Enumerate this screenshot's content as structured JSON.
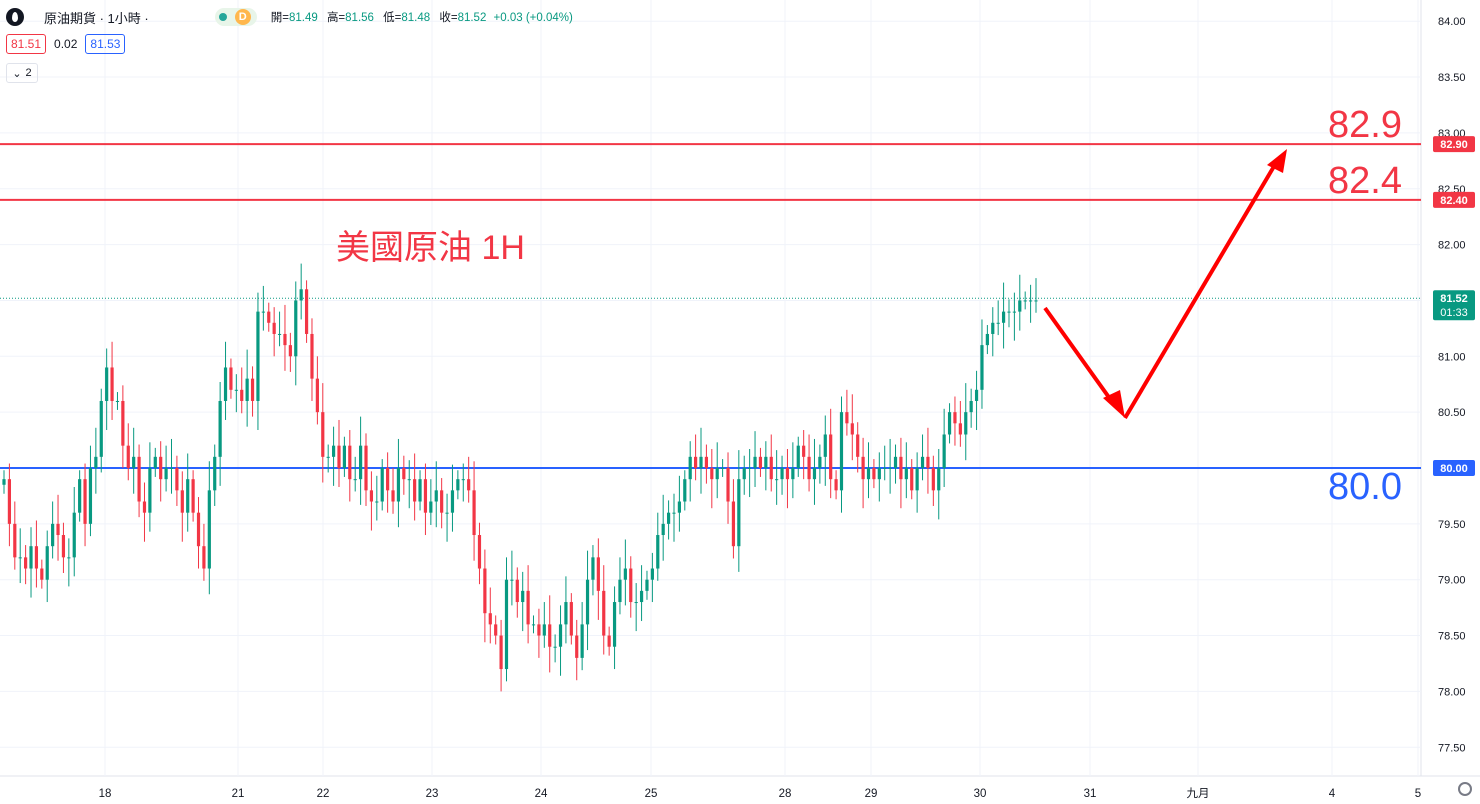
{
  "header": {
    "symbol_title": "原油期貨 · 1小時 ·",
    "market_badge": "D",
    "open_label": "開=",
    "open": "81.49",
    "high_label": "高=",
    "high": "81.56",
    "low_label": "低=",
    "low": "81.48",
    "close_label": "收=",
    "close": "81.52",
    "change": "+0.03 (+0.04%)"
  },
  "quote": {
    "bid": "81.51",
    "spread": "0.02",
    "ask": "81.53"
  },
  "indicators_toggle": {
    "count": "2"
  },
  "annotation": "美國原油 1H",
  "levels": [
    {
      "value": 82.9,
      "label": "82.9",
      "tag": "82.90",
      "color": "#f23645"
    },
    {
      "value": 82.4,
      "label": "82.4",
      "tag": "82.40",
      "color": "#f23645"
    },
    {
      "value": 80.0,
      "label": "80.0",
      "tag": "80.00",
      "color": "#2962ff"
    }
  ],
  "current_price": {
    "tag": "81.52",
    "countdown": "01:33",
    "color": "#089981"
  },
  "colors": {
    "up": "#089981",
    "down": "#f23645",
    "arrow": "#ff0000"
  },
  "chart_data": {
    "type": "candlestick",
    "title": "",
    "ylim": [
      77.3,
      84.1
    ],
    "y_ticks": [
      "77.50",
      "78.00",
      "78.50",
      "79.00",
      "79.50",
      "80.00",
      "80.50",
      "81.00",
      "81.50",
      "82.00",
      "82.50",
      "83.00",
      "83.50",
      "84.00"
    ],
    "x_ticks": [
      "18",
      "21",
      "22",
      "23",
      "24",
      "25",
      "28",
      "29",
      "30",
      "31",
      "九月",
      "4",
      "5"
    ],
    "grid": true,
    "candles_close": [
      79.9,
      79.5,
      79.2,
      79.2,
      79.1,
      79.3,
      79.1,
      79.0,
      79.3,
      79.5,
      79.4,
      79.2,
      79.2,
      79.6,
      79.9,
      79.5,
      80.0,
      80.1,
      80.6,
      80.9,
      80.6,
      80.6,
      80.2,
      80.0,
      80.1,
      79.7,
      79.6,
      80.0,
      80.1,
      79.9,
      80.0,
      80.0,
      79.8,
      79.6,
      79.9,
      79.6,
      79.3,
      79.1,
      79.8,
      80.1,
      80.6,
      80.9,
      80.7,
      80.7,
      80.6,
      80.8,
      80.6,
      81.4,
      81.4,
      81.3,
      81.2,
      81.2,
      81.1,
      81.0,
      81.5,
      81.6,
      81.2,
      80.8,
      80.5,
      80.1,
      80.1,
      80.2,
      80.0,
      80.2,
      79.9,
      79.9,
      80.2,
      79.8,
      79.7,
      79.7,
      80.0,
      79.8,
      79.7,
      80.0,
      79.9,
      79.9,
      79.7,
      79.9,
      79.6,
      79.7,
      79.8,
      79.6,
      79.6,
      79.8,
      79.9,
      79.9,
      79.8,
      79.4,
      79.1,
      78.7,
      78.6,
      78.5,
      78.2,
      79.0,
      79.0,
      78.8,
      78.9,
      78.6,
      78.6,
      78.5,
      78.6,
      78.4,
      78.4,
      78.6,
      78.8,
      78.5,
      78.3,
      78.6,
      79.0,
      79.2,
      78.9,
      78.5,
      78.4,
      78.8,
      79.0,
      79.1,
      78.8,
      78.8,
      78.9,
      79.0,
      79.1,
      79.4,
      79.5,
      79.6,
      79.6,
      79.7,
      79.9,
      80.1,
      80.0,
      80.1,
      80.0,
      79.9,
      80.0,
      80.0,
      79.7,
      79.3,
      79.9,
      80.0,
      80.0,
      80.1,
      80.0,
      80.1,
      79.9,
      79.9,
      80.0,
      79.9,
      80.0,
      80.2,
      80.1,
      79.9,
      80.0,
      80.1,
      80.3,
      79.9,
      79.8,
      80.5,
      80.4,
      80.3,
      80.1,
      79.9,
      80.0,
      79.9,
      80.0,
      80.0,
      80.0,
      80.1,
      79.9,
      80.0,
      79.8,
      80.0,
      80.1,
      80.0,
      79.8,
      80.0,
      80.3,
      80.5,
      80.4,
      80.3,
      80.5,
      80.6,
      80.7,
      81.1,
      81.2,
      81.3,
      81.3,
      81.4,
      81.4,
      81.4,
      81.5,
      81.5,
      81.5,
      81.5
    ]
  }
}
